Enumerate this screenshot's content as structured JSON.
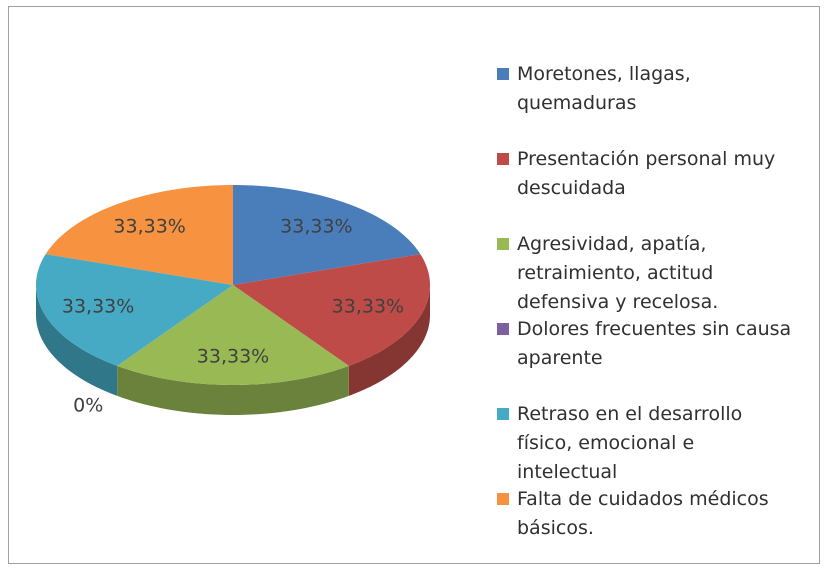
{
  "chart_data": {
    "type": "pie3d",
    "categories": [
      "Moretones, llagas, quemaduras",
      "Presentación personal muy descuidada",
      "Agresividad, apatía, retraimiento, actitud defensiva y recelosa.",
      "Dolores frecuentes sin causa aparente",
      "Retraso en el desarrollo físico, emocional e intelectual",
      "Falta de cuidados médicos básicos."
    ],
    "values": [
      33.33,
      33.33,
      33.33,
      0,
      33.33,
      33.33
    ],
    "value_labels": [
      "33,33%",
      "33,33%",
      "33,33%",
      "0%",
      "33,33%",
      "33,33%"
    ],
    "colors": [
      "#4a7ebb",
      "#be4b48",
      "#98b954",
      "#7d60a0",
      "#46aac5",
      "#f69240"
    ],
    "legend": "right"
  }
}
